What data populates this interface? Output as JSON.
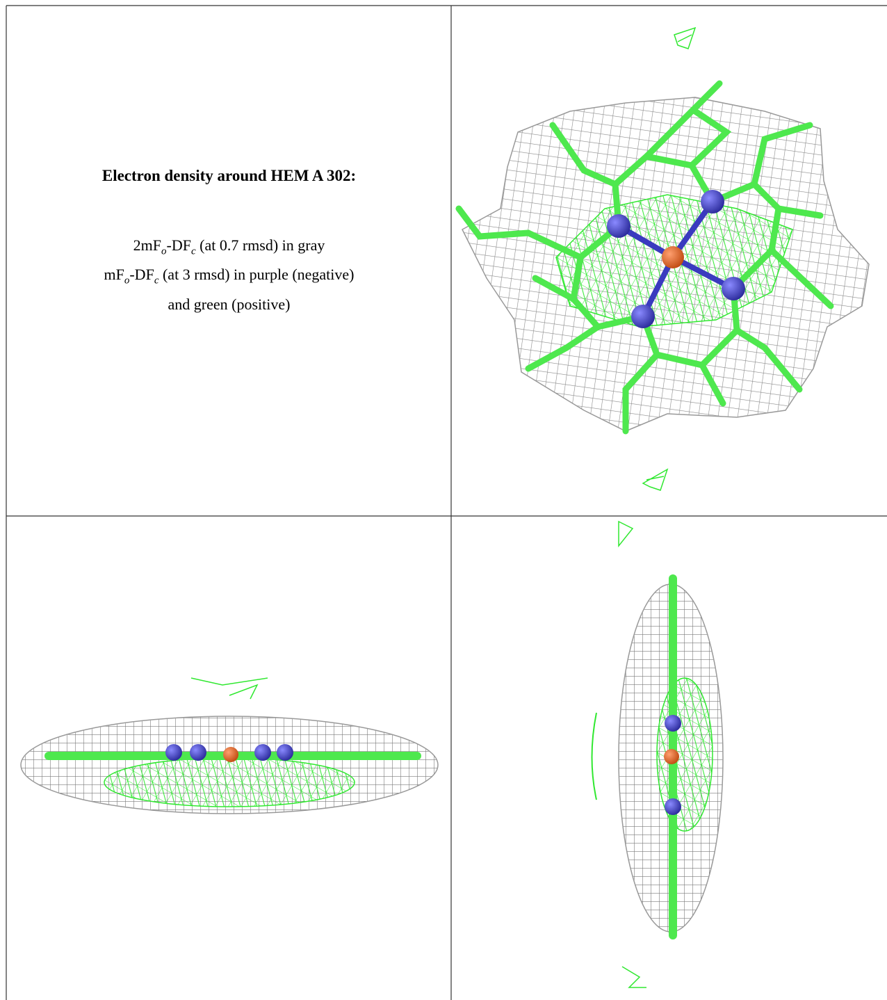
{
  "caption": {
    "title": "Electron density around HEM A 302:",
    "lines": [
      [
        {
          "text": "2mF"
        },
        {
          "sub": "o"
        },
        {
          "text": "-DF"
        },
        {
          "sub": "c"
        },
        {
          "text": " (at 0.7 rmsd) in gray"
        }
      ],
      [
        {
          "text": "mF"
        },
        {
          "sub": "o"
        },
        {
          "text": "-DF"
        },
        {
          "sub": "c"
        },
        {
          "text": " (at 3 rmsd) in purple (negative)"
        }
      ],
      [
        {
          "text": "and green (positive)"
        }
      ]
    ]
  }
}
